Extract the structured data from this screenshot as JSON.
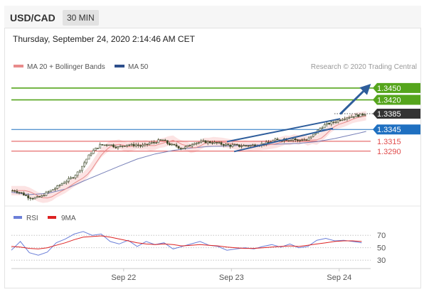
{
  "header": {
    "symbol": "USD/CAD",
    "timeframe": "30 MIN"
  },
  "datetime": "Thursday, September 24, 2020 2:14:46 AM CET",
  "legend": {
    "ma_bb": "MA 20 + Bollinger Bands",
    "ma50": "MA 50",
    "credit": "Research © 2020 Trading Central"
  },
  "rsi_legend": {
    "rsi": "RSI",
    "ma": "9MA"
  },
  "colors": {
    "green": "#55a51c",
    "blue_level": "#1f70c1",
    "red_level": "#e04b4b",
    "price_box": "#333333",
    "candle": "#3f4a2a",
    "ma20": "#e88b8b",
    "bb_fill": "#fbdada",
    "ma50": "#7780b8",
    "rsi": "#6b7fd8",
    "rsi_ma": "#dd2222",
    "arrow": "#2e5d9b"
  },
  "chart_data": [
    {
      "type": "candlestick",
      "title": "USD/CAD",
      "price_range": [
        1.316,
        1.3475
      ],
      "time_range": [
        "Sep 21",
        "Sep 24"
      ],
      "x_ticks": [
        "Sep 22",
        "Sep 23",
        "Sep 24"
      ],
      "levels": [
        {
          "value": 1.345,
          "label": "1.3450",
          "role": "resistance",
          "color": "green"
        },
        {
          "value": 1.342,
          "label": "1.3420",
          "role": "resistance",
          "color": "green"
        },
        {
          "value": 1.3385,
          "label": "1.3385",
          "role": "last price",
          "color": "dark"
        },
        {
          "value": 1.3345,
          "label": "1.3345",
          "role": "pivot",
          "color": "blue"
        },
        {
          "value": 1.3315,
          "label": "1.3315",
          "role": "support",
          "color": "red"
        },
        {
          "value": 1.329,
          "label": "1.3290",
          "role": "support",
          "color": "red"
        }
      ],
      "price_path": [
        [
          0,
          1.319
        ],
        [
          0.5,
          1.319
        ],
        [
          1,
          1.3186
        ],
        [
          1.5,
          1.318
        ],
        [
          2,
          1.3174
        ],
        [
          2.5,
          1.3171
        ],
        [
          3,
          1.3172
        ],
        [
          3.5,
          1.3176
        ],
        [
          4,
          1.3184
        ],
        [
          4.5,
          1.319
        ],
        [
          5,
          1.3196
        ],
        [
          5.5,
          1.3204
        ],
        [
          6,
          1.3212
        ],
        [
          6.5,
          1.3218
        ],
        [
          7,
          1.3225
        ],
        [
          7.5,
          1.3236
        ],
        [
          8,
          1.3252
        ],
        [
          8.5,
          1.327
        ],
        [
          9,
          1.3286
        ],
        [
          9.5,
          1.3296
        ],
        [
          10,
          1.3305
        ],
        [
          10.5,
          1.3306
        ],
        [
          11,
          1.3308
        ],
        [
          11.5,
          1.3303
        ],
        [
          12,
          1.33
        ],
        [
          12.5,
          1.3304
        ],
        [
          13,
          1.3307
        ],
        [
          13.5,
          1.3305
        ],
        [
          14,
          1.3306
        ],
        [
          14.5,
          1.3303
        ],
        [
          15,
          1.3305
        ],
        [
          15.5,
          1.331
        ],
        [
          16,
          1.3312
        ],
        [
          16.5,
          1.3316
        ],
        [
          17,
          1.3318
        ],
        [
          17.5,
          1.331
        ],
        [
          18,
          1.3305
        ],
        [
          18.5,
          1.3303
        ],
        [
          19,
          1.3297
        ],
        [
          19.5,
          1.33
        ],
        [
          20,
          1.3305
        ],
        [
          20.5,
          1.3312
        ],
        [
          21,
          1.3312
        ],
        [
          21.5,
          1.3314
        ],
        [
          22,
          1.3313
        ],
        [
          22.5,
          1.3312
        ],
        [
          23,
          1.331
        ],
        [
          23.5,
          1.3308
        ],
        [
          24,
          1.3306
        ],
        [
          24.5,
          1.3304
        ],
        [
          25,
          1.3305
        ],
        [
          25.5,
          1.3303
        ],
        [
          26,
          1.3304
        ],
        [
          26.5,
          1.3304
        ],
        [
          27,
          1.3305
        ],
        [
          27.5,
          1.3306
        ],
        [
          28,
          1.3308
        ],
        [
          28.5,
          1.331
        ],
        [
          29,
          1.3314
        ],
        [
          29.5,
          1.3318
        ],
        [
          30,
          1.3317
        ],
        [
          30.5,
          1.3321
        ],
        [
          31,
          1.3318
        ],
        [
          31.5,
          1.3322
        ],
        [
          32,
          1.3316
        ],
        [
          32.5,
          1.332
        ],
        [
          33,
          1.3318
        ],
        [
          33.5,
          1.3326
        ],
        [
          34,
          1.3336
        ],
        [
          34.5,
          1.3348
        ],
        [
          35,
          1.3356
        ],
        [
          35.5,
          1.336
        ],
        [
          36,
          1.3363
        ],
        [
          36.5,
          1.3368
        ],
        [
          37,
          1.3373
        ],
        [
          37.5,
          1.3376
        ],
        [
          38,
          1.3378
        ],
        [
          38.5,
          1.338
        ],
        [
          39,
          1.3381
        ],
        [
          39.5,
          1.3385
        ]
      ],
      "bollinger_half_width": 0.0012,
      "ma50_path": [
        [
          0,
          1.3186
        ],
        [
          2,
          1.318
        ],
        [
          4,
          1.3183
        ],
        [
          6,
          1.3194
        ],
        [
          8,
          1.3214
        ],
        [
          10,
          1.3233
        ],
        [
          12,
          1.3252
        ],
        [
          14,
          1.327
        ],
        [
          16,
          1.3283
        ],
        [
          18,
          1.3292
        ],
        [
          20,
          1.3298
        ],
        [
          22,
          1.3302
        ],
        [
          24,
          1.3303
        ],
        [
          26,
          1.3305
        ],
        [
          28,
          1.3306
        ],
        [
          30,
          1.3308
        ],
        [
          32,
          1.331
        ],
        [
          34,
          1.3314
        ],
        [
          36,
          1.3322
        ],
        [
          38,
          1.3332
        ],
        [
          39.5,
          1.334
        ]
      ],
      "channel": {
        "upper": [
          [
            24.0,
            1.3314
          ],
          [
            36.6,
            1.3372
          ]
        ],
        "lower": [
          [
            24.8,
            1.3289
          ],
          [
            35.8,
            1.3348
          ]
        ]
      },
      "forecast_arrow": [
        [
          36.6,
          1.3384
        ],
        [
          39.6,
          1.3451
        ]
      ]
    },
    {
      "type": "line",
      "title": "RSI",
      "ylim": [
        20,
        85
      ],
      "y_ticks": [
        70,
        50,
        30
      ],
      "series": [
        {
          "name": "RSI",
          "values": [
            [
              0,
              46
            ],
            [
              1,
              60
            ],
            [
              2,
              42
            ],
            [
              3,
              38
            ],
            [
              4,
              43
            ],
            [
              5,
              58
            ],
            [
              6,
              64
            ],
            [
              7,
              72
            ],
            [
              8,
              76
            ],
            [
              9,
              70
            ],
            [
              10,
              72
            ],
            [
              11,
              60
            ],
            [
              12,
              56
            ],
            [
              13,
              62
            ],
            [
              14,
              52
            ],
            [
              15,
              60
            ],
            [
              16,
              55
            ],
            [
              17,
              58
            ],
            [
              18,
              48
            ],
            [
              19,
              52
            ],
            [
              20,
              56
            ],
            [
              21,
              60
            ],
            [
              22,
              54
            ],
            [
              23,
              52
            ],
            [
              24,
              46
            ],
            [
              25,
              48
            ],
            [
              26,
              50
            ],
            [
              27,
              48
            ],
            [
              28,
              52
            ],
            [
              29,
              55
            ],
            [
              30,
              51
            ],
            [
              31,
              56
            ],
            [
              32,
              50
            ],
            [
              33,
              52
            ],
            [
              34,
              62
            ],
            [
              35,
              65
            ],
            [
              36,
              61
            ],
            [
              37,
              62
            ],
            [
              38,
              60
            ],
            [
              39,
              58
            ]
          ]
        },
        {
          "name": "9MA",
          "values": [
            [
              0,
              52
            ],
            [
              1,
              51
            ],
            [
              2,
              49
            ],
            [
              3,
              48
            ],
            [
              4,
              50
            ],
            [
              5,
              54
            ],
            [
              6,
              58
            ],
            [
              7,
              63
            ],
            [
              8,
              67
            ],
            [
              9,
              68
            ],
            [
              10,
              69
            ],
            [
              11,
              67
            ],
            [
              12,
              64
            ],
            [
              13,
              61
            ],
            [
              14,
              58
            ],
            [
              15,
              56
            ],
            [
              16,
              55
            ],
            [
              17,
              56
            ],
            [
              18,
              55
            ],
            [
              19,
              53
            ],
            [
              20,
              54
            ],
            [
              21,
              55
            ],
            [
              22,
              54
            ],
            [
              23,
              53
            ],
            [
              24,
              51
            ],
            [
              25,
              50
            ],
            [
              26,
              49
            ],
            [
              27,
              49
            ],
            [
              28,
              50
            ],
            [
              29,
              51
            ],
            [
              30,
              52
            ],
            [
              31,
              53
            ],
            [
              32,
              52
            ],
            [
              33,
              54
            ],
            [
              34,
              56
            ],
            [
              35,
              58
            ],
            [
              36,
              60
            ],
            [
              37,
              61
            ],
            [
              38,
              61
            ],
            [
              39,
              60
            ]
          ]
        }
      ]
    }
  ]
}
